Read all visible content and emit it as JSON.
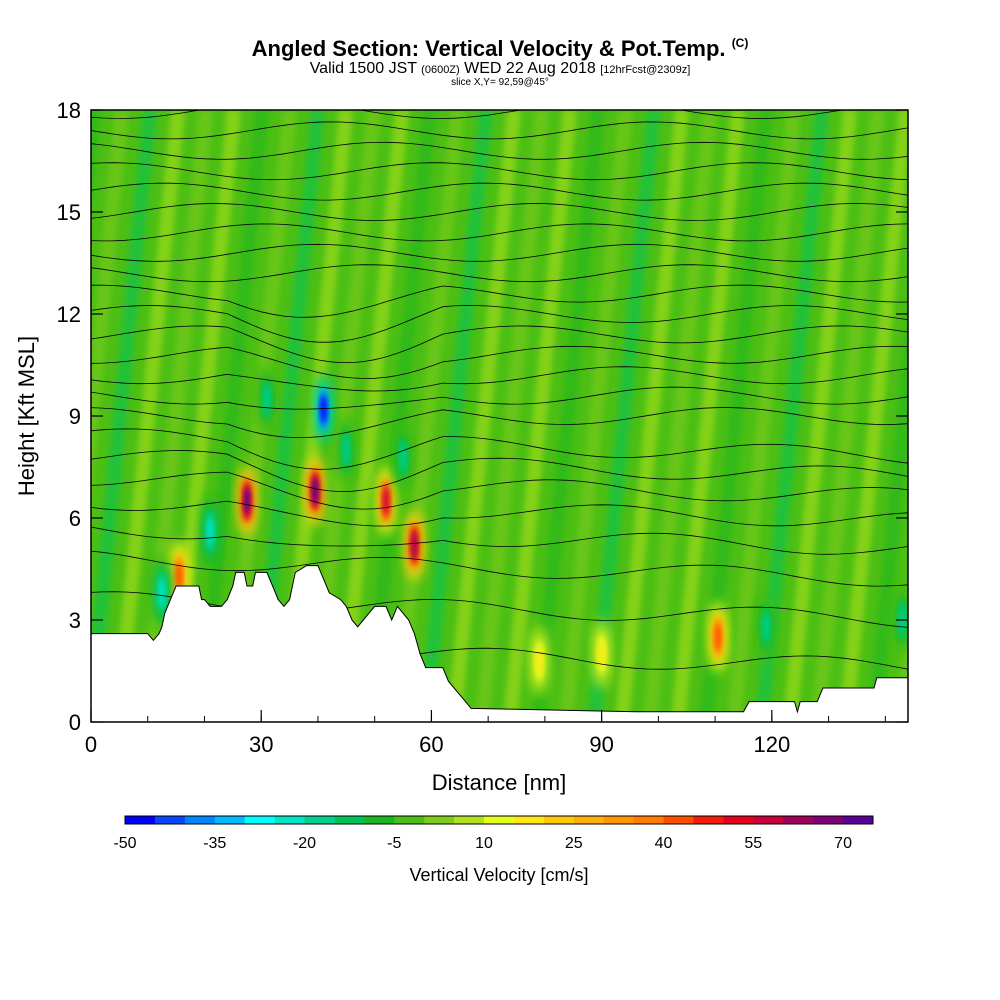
{
  "title": "Angled Section: Vertical Velocity & Pot.Temp.",
  "title_unit": "(C)",
  "subtitle_prefix": "Valid 1500 JST",
  "subtitle_utc": "(0600Z)",
  "subtitle_date": "WED 22 Aug 2018",
  "subtitle_fcst": "[12hrFcst@2309z]",
  "slice_label": "slice X,Y= 92,59@45°",
  "chart_data": {
    "type": "heatmap",
    "xlabel": "Distance [nm]",
    "ylabel": "Height [Kft MSL]",
    "xlim": [
      0,
      144
    ],
    "ylim": [
      0,
      18
    ],
    "xticks": [
      "0",
      "30",
      "60",
      "90",
      "120"
    ],
    "yticks": [
      "0",
      "3",
      "6",
      "9",
      "12",
      "15",
      "18"
    ],
    "colorbar": {
      "label": "Vertical Velocity [cm/s]",
      "min": -50,
      "max": 75,
      "step": 5,
      "tick_labels": [
        "-50",
        "-35",
        "-20",
        "-5",
        "10",
        "25",
        "40",
        "55",
        "70"
      ],
      "colors": [
        "#0000ff",
        "#0a46ff",
        "#0087ff",
        "#00b9ff",
        "#00ffff",
        "#00e5c8",
        "#00d18c",
        "#00c35a",
        "#1ab61f",
        "#4cbf14",
        "#7fcc1a",
        "#b2e21f",
        "#e6ff1a",
        "#ffe619",
        "#ffc80f",
        "#ffaf0a",
        "#ff9600",
        "#ff7d00",
        "#ff5000",
        "#f01e0a",
        "#e6001e",
        "#c8003c",
        "#a0005a",
        "#800078",
        "#5a0096"
      ]
    },
    "updrafts": [
      {
        "x": 27.5,
        "y": 6.5,
        "w_max": 70
      },
      {
        "x": 39.5,
        "y": 6.8,
        "w_max": 70
      },
      {
        "x": 52,
        "y": 6.5,
        "w_max": 55
      },
      {
        "x": 57,
        "y": 5.2,
        "w_max": 60
      },
      {
        "x": 110.5,
        "y": 2.5,
        "w_max": 40
      },
      {
        "x": 15.5,
        "y": 4.3,
        "w_max": 40
      },
      {
        "x": 79,
        "y": 1.8,
        "w_max": 18
      },
      {
        "x": 90,
        "y": 2.0,
        "w_max": 15
      }
    ],
    "downdrafts": [
      {
        "x": 41,
        "y": 9.2,
        "w_min": -50
      },
      {
        "x": 12.5,
        "y": 3.8,
        "w_min": -25
      },
      {
        "x": 21,
        "y": 5.6,
        "w_min": -25
      },
      {
        "x": 31,
        "y": 9.5,
        "w_min": -20
      },
      {
        "x": 45,
        "y": 8.0,
        "w_min": -20
      },
      {
        "x": 55,
        "y": 7.8,
        "w_min": -20
      },
      {
        "x": 119,
        "y": 2.8,
        "w_min": -20
      },
      {
        "x": 143,
        "y": 3.0,
        "w_min": -20
      }
    ],
    "terrain_kft": [
      [
        0,
        2.6
      ],
      [
        10,
        2.6
      ],
      [
        11,
        2.4
      ],
      [
        12,
        2.6
      ],
      [
        12.5,
        2.8
      ],
      [
        13,
        3.2
      ],
      [
        14,
        3.6
      ],
      [
        15,
        4.0
      ],
      [
        19,
        4.0
      ],
      [
        19.5,
        3.6
      ],
      [
        20,
        3.6
      ],
      [
        21,
        3.4
      ],
      [
        23,
        3.4
      ],
      [
        24,
        3.6
      ],
      [
        25,
        4.0
      ],
      [
        25.5,
        4.4
      ],
      [
        27,
        4.4
      ],
      [
        27.5,
        4.0
      ],
      [
        28.5,
        4.0
      ],
      [
        29,
        4.4
      ],
      [
        31,
        4.4
      ],
      [
        32,
        4.0
      ],
      [
        33,
        3.6
      ],
      [
        34,
        3.4
      ],
      [
        35,
        3.6
      ],
      [
        35.5,
        4.0
      ],
      [
        36,
        4.4
      ],
      [
        38,
        4.6
      ],
      [
        40,
        4.6
      ],
      [
        41,
        4.2
      ],
      [
        42,
        3.8
      ],
      [
        44,
        3.6
      ],
      [
        45,
        3.4
      ],
      [
        46,
        3.0
      ],
      [
        47,
        2.8
      ],
      [
        48,
        3.0
      ],
      [
        49,
        3.2
      ],
      [
        50,
        3.4
      ],
      [
        52,
        3.4
      ],
      [
        53,
        3.0
      ],
      [
        54,
        3.4
      ],
      [
        56,
        3.0
      ],
      [
        57,
        2.6
      ],
      [
        58,
        2.0
      ],
      [
        59,
        1.6
      ],
      [
        62,
        1.6
      ],
      [
        63,
        1.2
      ],
      [
        66,
        0.6
      ],
      [
        67,
        0.4
      ],
      [
        96,
        0.3
      ],
      [
        100,
        0.3
      ],
      [
        115,
        0.3
      ],
      [
        116,
        0.6
      ],
      [
        124,
        0.6
      ],
      [
        124.5,
        0.3
      ],
      [
        125,
        0.6
      ],
      [
        128,
        0.6
      ],
      [
        129,
        1.0
      ],
      [
        138,
        1.0
      ],
      [
        138.5,
        1.3
      ],
      [
        144,
        1.3
      ]
    ],
    "contour_base_levels": [
      2.2,
      3.6,
      4.8,
      5.7,
      6.5,
      7.2
    ]
  }
}
